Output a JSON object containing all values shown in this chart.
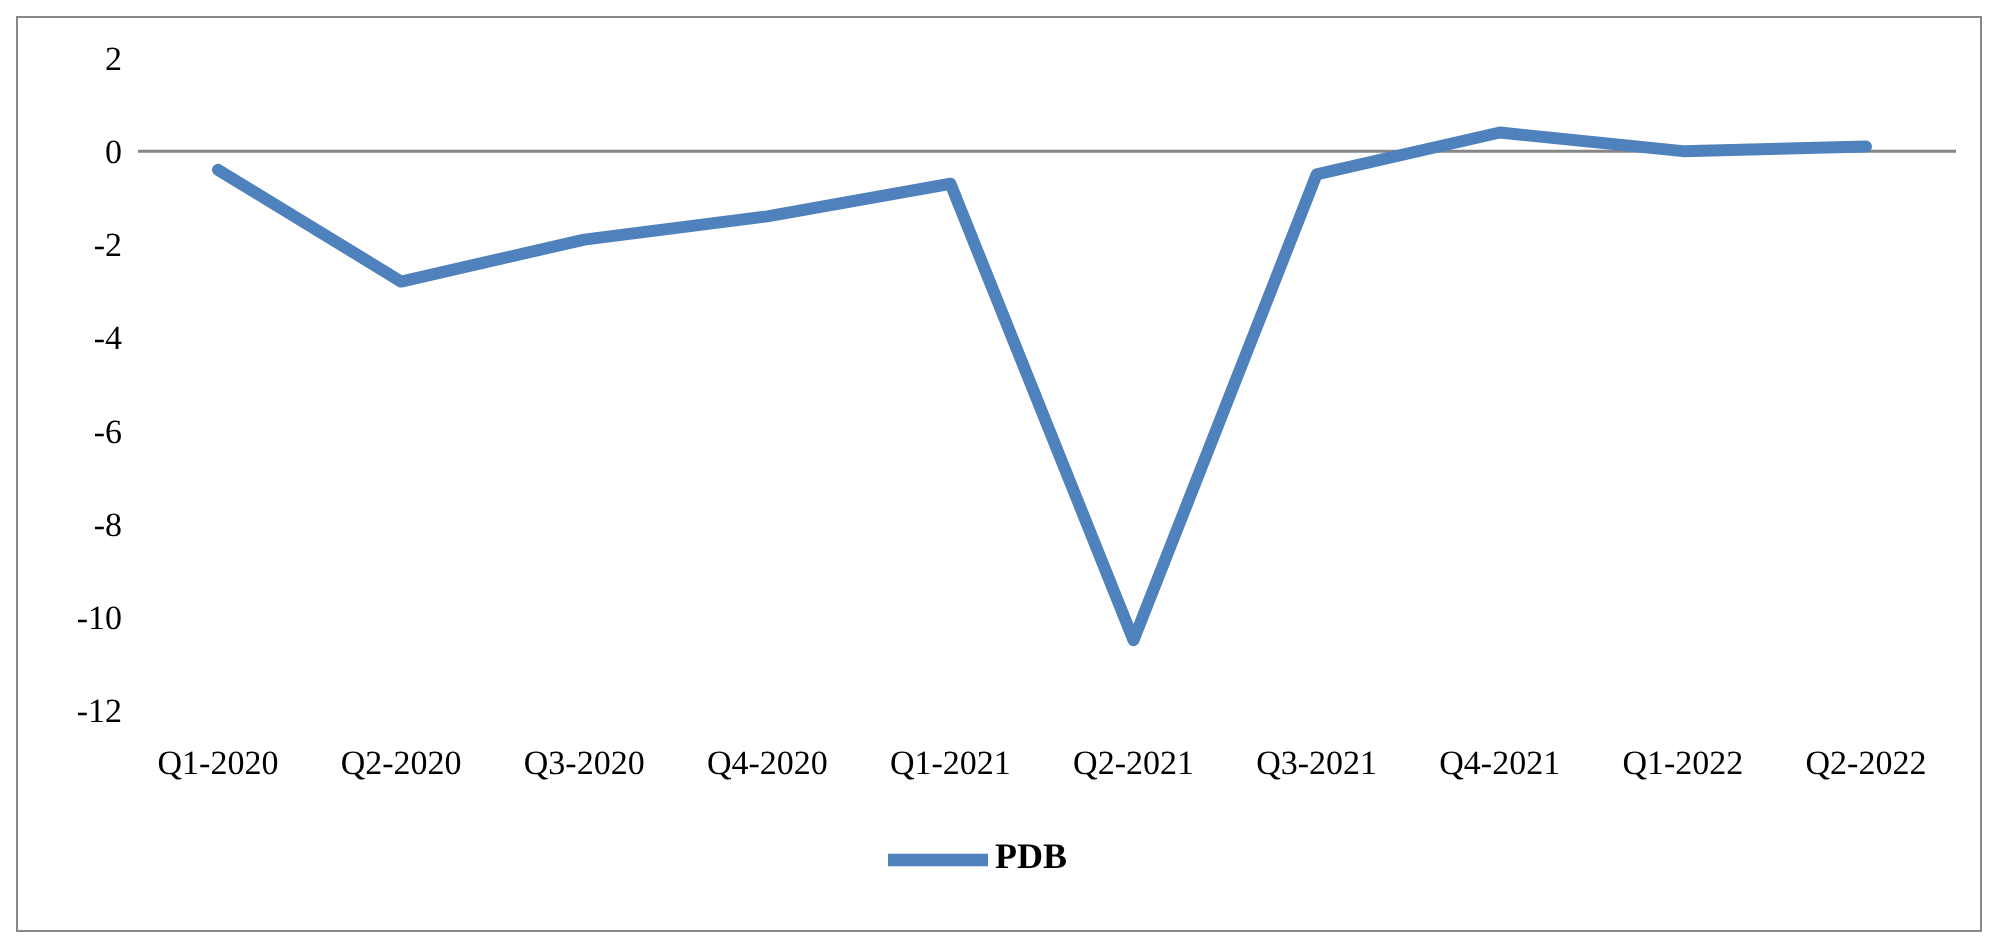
{
  "chart_data": {
    "type": "line",
    "categories": [
      "Q1-2020",
      "Q2-2020",
      "Q3-2020",
      "Q4-2020",
      "Q1-2021",
      "Q2-2021",
      "Q3-2021",
      "Q4-2021",
      "Q1-2022",
      "Q2-2022"
    ],
    "series": [
      {
        "name": "PDB",
        "color": "#4f81bd",
        "values": [
          -0.4,
          -2.8,
          -1.9,
          -1.4,
          -0.7,
          -10.5,
          -0.5,
          0.4,
          0,
          0.1
        ]
      }
    ],
    "ylim": [
      -12,
      2
    ],
    "yticks": [
      -12,
      -10,
      -8,
      -6,
      -4,
      -2,
      0,
      2
    ],
    "grid": false,
    "legend": "bottom",
    "marker": "none",
    "line_style": "solid",
    "ref_lines": [
      {
        "axis": "y",
        "value": 0,
        "color": "#868686"
      }
    ]
  }
}
